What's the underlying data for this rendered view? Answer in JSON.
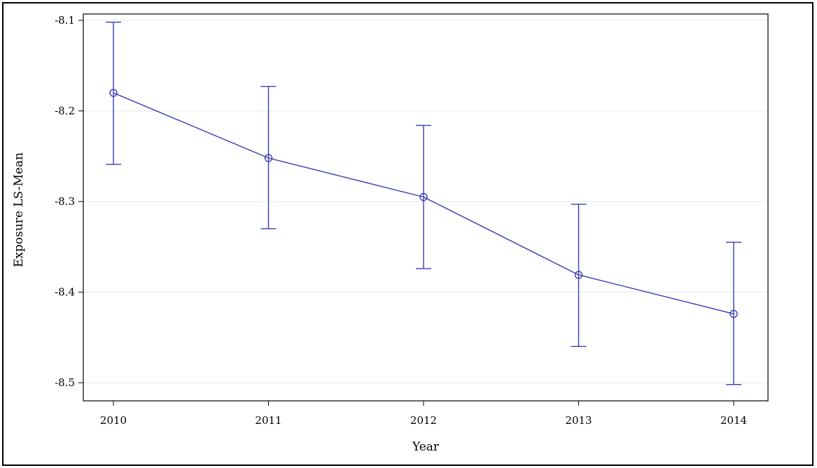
{
  "chart_data": {
    "type": "line",
    "title": "",
    "xlabel": "Year",
    "ylabel": "Exposure LS-Mean",
    "x": [
      "2010",
      "2011",
      "2012",
      "2013",
      "2014"
    ],
    "y_ticks": [
      "-8.1",
      "-8.2",
      "-8.3",
      "-8.4",
      "-8.5"
    ],
    "ylim": [
      -8.52,
      -8.093
    ],
    "grid": true,
    "series": [
      {
        "values": [
          -8.18,
          -8.252,
          -8.295,
          -8.381,
          -8.424
        ],
        "lower": [
          -8.259,
          -8.33,
          -8.374,
          -8.46,
          -8.502
        ],
        "upper": [
          -8.102,
          -8.173,
          -8.216,
          -8.303,
          -8.345
        ],
        "color": "#3b3bb3"
      }
    ]
  }
}
